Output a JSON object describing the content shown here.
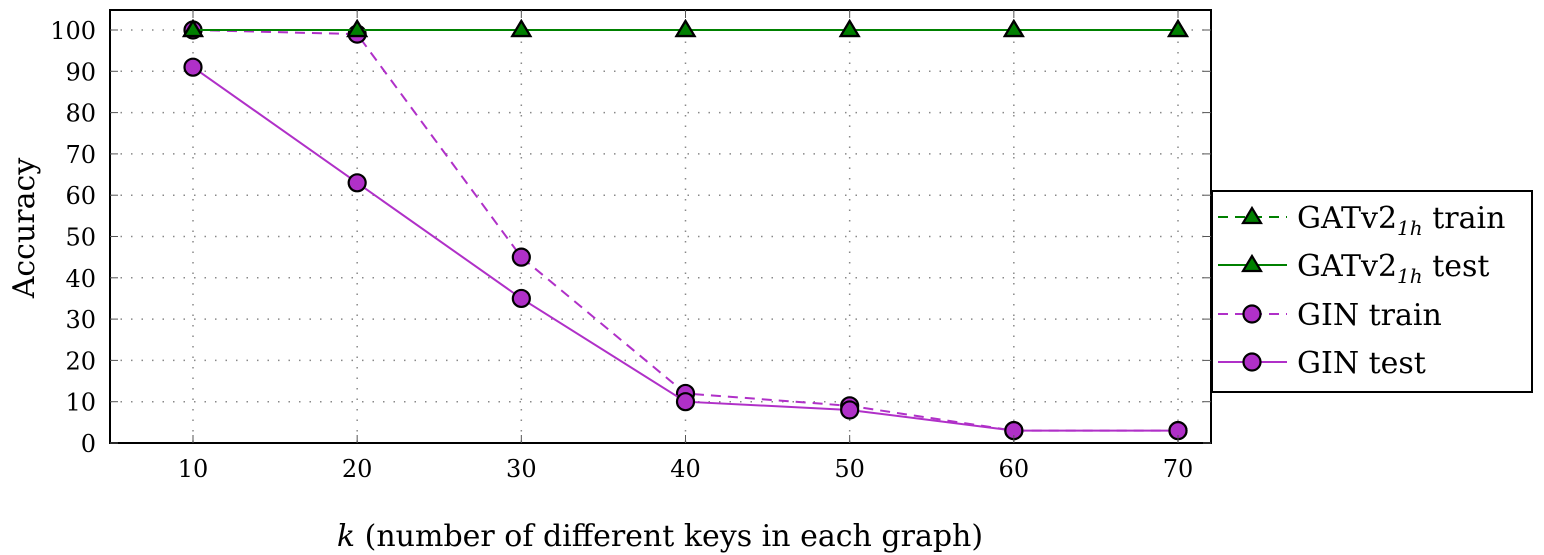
{
  "chart_data": {
    "type": "line",
    "title": "",
    "xlabel_var": "k",
    "xlabel": " (number of different keys in each graph)",
    "ylabel": "Accuracy",
    "x": [
      10,
      20,
      30,
      40,
      50,
      60,
      70
    ],
    "xlim": [
      5,
      72.5
    ],
    "ylim": [
      0,
      105
    ],
    "xticks": [
      10,
      20,
      30,
      40,
      50,
      60,
      70
    ],
    "yticks": [
      0,
      10,
      20,
      30,
      40,
      50,
      60,
      70,
      80,
      90,
      100
    ],
    "grid": true,
    "legend_position": "outside-right",
    "series": [
      {
        "name": "GATv2_1h train",
        "label_main": "GATv2",
        "label_sub": "1h",
        "label_rest": " train",
        "color": "#008000",
        "dash": true,
        "marker": "triangle",
        "values": [
          100,
          100,
          100,
          100,
          100,
          100,
          100
        ]
      },
      {
        "name": "GATv2_1h test",
        "label_main": "GATv2",
        "label_sub": "1h",
        "label_rest": " test",
        "color": "#008000",
        "dash": false,
        "marker": "triangle",
        "values": [
          100,
          100,
          100,
          100,
          100,
          100,
          100
        ]
      },
      {
        "name": "GIN train",
        "label_main": "GIN train",
        "label_sub": "",
        "label_rest": "",
        "color": "#b030c8",
        "dash": true,
        "marker": "circle",
        "values": [
          100,
          99,
          45,
          12,
          9,
          3,
          3
        ]
      },
      {
        "name": "GIN test",
        "label_main": "GIN test",
        "label_sub": "",
        "label_rest": "",
        "color": "#b030c8",
        "dash": false,
        "marker": "circle",
        "values": [
          91,
          63,
          35,
          10,
          8,
          3,
          3
        ]
      }
    ]
  }
}
